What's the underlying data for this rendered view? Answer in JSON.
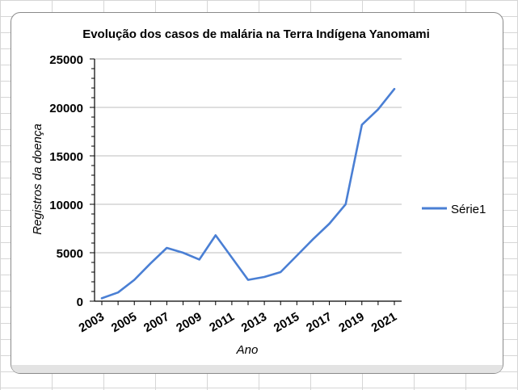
{
  "chart_data": {
    "type": "line",
    "title": "Evolução dos casos de malária na Terra Indígena Yanomami",
    "xlabel": "Ano",
    "ylabel": "Registros da doença",
    "x": [
      2003,
      2004,
      2005,
      2006,
      2007,
      2008,
      2009,
      2010,
      2011,
      2012,
      2013,
      2014,
      2015,
      2016,
      2017,
      2018,
      2019,
      2020,
      2021
    ],
    "x_tick_labels": [
      "2003",
      "2005",
      "2007",
      "2009",
      "2011",
      "2013",
      "2015",
      "2017",
      "2019",
      "2021"
    ],
    "y_tick_labels": [
      "0",
      "5000",
      "10000",
      "15000",
      "20000",
      "25000"
    ],
    "ylim": [
      0,
      25000
    ],
    "grid": "horizontal",
    "legend_position": "right",
    "series": [
      {
        "name": "Série1",
        "color": "#4a7fd4",
        "values": [
          300,
          900,
          2200,
          3900,
          5500,
          5000,
          4300,
          6800,
          4500,
          2200,
          2500,
          3000,
          4700,
          6400,
          8000,
          10000,
          18200,
          19800,
          21900
        ]
      }
    ]
  }
}
